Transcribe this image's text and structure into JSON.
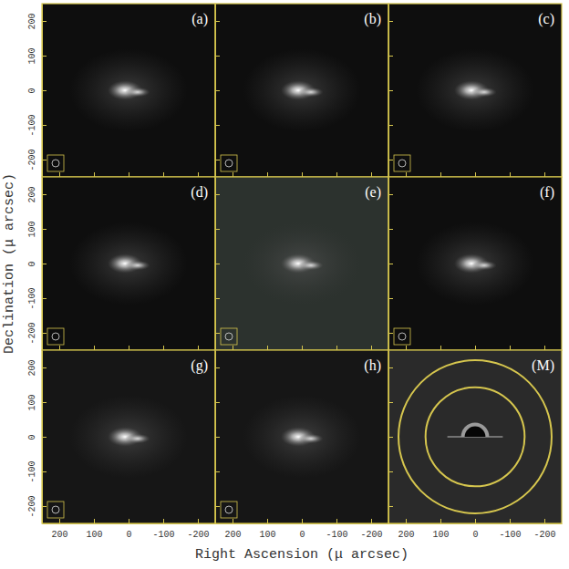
{
  "chart_data": {
    "type": "image_grid",
    "x_label": "Right Ascension (μ arcsec)",
    "y_label": "Declination (μ arcsec)",
    "xlim": [
      250,
      -250
    ],
    "ylim": [
      -250,
      250
    ],
    "xticks": [
      200,
      100,
      0,
      -100,
      -200
    ],
    "yticks": [
      -200,
      -100,
      0,
      100,
      200
    ],
    "panels": [
      "(a)",
      "(b)",
      "(c)",
      "(d)",
      "(e)",
      "(f)",
      "(g)",
      "(h)",
      "(M)"
    ],
    "model_ring_radii": [
      143,
      221
    ]
  }
}
